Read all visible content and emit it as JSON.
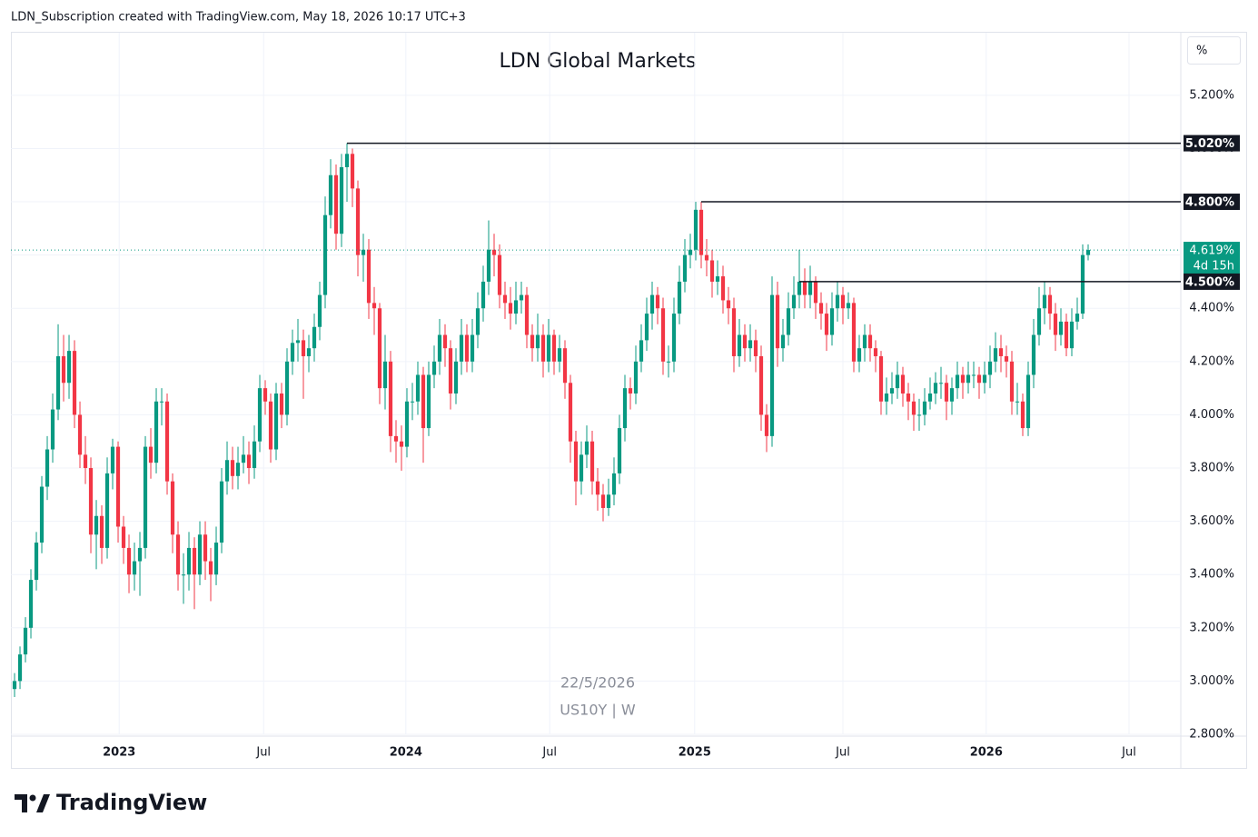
{
  "header": "LDN_Subscription created with TradingView.com, May 18, 2026 10:17 UTC+3",
  "logo": "TradingView",
  "chart_data": {
    "type": "candlestick",
    "title": "LDN Global Markets",
    "unit": "%",
    "watermark": [
      "22/5/2026",
      "US10Y | W"
    ],
    "up_color": "#089981",
    "down_color": "#f23645",
    "xlim": [
      -0.67,
      214
    ],
    "ylim": [
      2.8,
      5.435
    ],
    "xticks": [
      {
        "value": 19.2,
        "label": "2023"
      },
      {
        "value": 45.7,
        "label": "Jul"
      },
      {
        "value": 71.8,
        "label": "2024"
      },
      {
        "value": 98.2,
        "label": "Jul"
      },
      {
        "value": 124.8,
        "label": "2025"
      },
      {
        "value": 152,
        "label": "Jul"
      },
      {
        "value": 178.3,
        "label": "2026"
      },
      {
        "value": 204.5,
        "label": "Jul"
      }
    ],
    "yticks": [
      {
        "value": 2.8,
        "label": "2.800%"
      },
      {
        "value": 3.0,
        "label": "3.000%"
      },
      {
        "value": 3.2,
        "label": "3.200%"
      },
      {
        "value": 3.4,
        "label": "3.400%"
      },
      {
        "value": 3.6,
        "label": "3.600%"
      },
      {
        "value": 3.8,
        "label": "3.800%"
      },
      {
        "value": 4.0,
        "label": "4.000%"
      },
      {
        "value": 4.2,
        "label": "4.200%"
      },
      {
        "value": 4.4,
        "label": "4.400%"
      },
      {
        "value": 4.6,
        "label": "4.600%"
      },
      {
        "value": 4.8,
        "label": "4.800%"
      },
      {
        "value": 5.0,
        "label": "5.000%"
      },
      {
        "value": 5.2,
        "label": "5.200%"
      }
    ],
    "grid": true,
    "levels": [
      {
        "value": 5.02,
        "label": "5.020%",
        "x": 61
      },
      {
        "value": 4.8,
        "label": "4.800%",
        "x": 126
      },
      {
        "value": 4.5,
        "label": "4.500%",
        "x": 144
      }
    ],
    "last_price": {
      "value": 4.619,
      "label": "4.619%",
      "countdown": "4d 15h"
    },
    "ohlc": [
      [
        2.97,
        3.03,
        2.94,
        3.0
      ],
      [
        3.0,
        3.13,
        2.97,
        3.1
      ],
      [
        3.1,
        3.24,
        3.07,
        3.2
      ],
      [
        3.2,
        3.42,
        3.16,
        3.38
      ],
      [
        3.38,
        3.56,
        3.34,
        3.52
      ],
      [
        3.52,
        3.77,
        3.48,
        3.73
      ],
      [
        3.73,
        3.92,
        3.68,
        3.87
      ],
      [
        3.87,
        4.08,
        3.82,
        4.02
      ],
      [
        4.02,
        4.34,
        3.98,
        4.22
      ],
      [
        4.22,
        4.3,
        4.05,
        4.12
      ],
      [
        4.12,
        4.3,
        4.06,
        4.24
      ],
      [
        4.24,
        4.28,
        3.95,
        4.0
      ],
      [
        4.0,
        4.05,
        3.8,
        3.85
      ],
      [
        3.85,
        3.92,
        3.74,
        3.8
      ],
      [
        3.8,
        3.84,
        3.48,
        3.55
      ],
      [
        3.55,
        3.68,
        3.42,
        3.62
      ],
      [
        3.62,
        3.66,
        3.44,
        3.5
      ],
      [
        3.5,
        3.84,
        3.46,
        3.78
      ],
      [
        3.78,
        3.91,
        3.72,
        3.88
      ],
      [
        3.88,
        3.9,
        3.52,
        3.58
      ],
      [
        3.58,
        3.62,
        3.44,
        3.5
      ],
      [
        3.5,
        3.55,
        3.33,
        3.4
      ],
      [
        3.4,
        3.52,
        3.34,
        3.45
      ],
      [
        3.45,
        3.56,
        3.32,
        3.5
      ],
      [
        3.5,
        3.92,
        3.46,
        3.88
      ],
      [
        3.88,
        3.95,
        3.76,
        3.82
      ],
      [
        3.82,
        4.1,
        3.78,
        4.05
      ],
      [
        4.05,
        4.1,
        3.96,
        4.05
      ],
      [
        4.05,
        4.08,
        3.7,
        3.75
      ],
      [
        3.75,
        3.78,
        3.48,
        3.55
      ],
      [
        3.55,
        3.6,
        3.34,
        3.4
      ],
      [
        3.4,
        3.48,
        3.29,
        3.4
      ],
      [
        3.4,
        3.56,
        3.34,
        3.5
      ],
      [
        3.5,
        3.54,
        3.27,
        3.4
      ],
      [
        3.4,
        3.6,
        3.36,
        3.55
      ],
      [
        3.55,
        3.6,
        3.38,
        3.45
      ],
      [
        3.45,
        3.5,
        3.3,
        3.4
      ],
      [
        3.4,
        3.58,
        3.36,
        3.52
      ],
      [
        3.52,
        3.8,
        3.48,
        3.75
      ],
      [
        3.75,
        3.9,
        3.7,
        3.83
      ],
      [
        3.83,
        3.88,
        3.72,
        3.77
      ],
      [
        3.77,
        3.88,
        3.72,
        3.82
      ],
      [
        3.82,
        3.92,
        3.78,
        3.85
      ],
      [
        3.85,
        3.9,
        3.74,
        3.8
      ],
      [
        3.8,
        3.96,
        3.76,
        3.9
      ],
      [
        3.9,
        4.15,
        3.86,
        4.1
      ],
      [
        4.1,
        4.13,
        4.0,
        4.05
      ],
      [
        4.05,
        4.08,
        3.82,
        3.87
      ],
      [
        3.87,
        4.12,
        3.83,
        4.08
      ],
      [
        4.08,
        4.12,
        3.95,
        4.0
      ],
      [
        4.0,
        4.25,
        3.96,
        4.2
      ],
      [
        4.2,
        4.32,
        4.15,
        4.27
      ],
      [
        4.27,
        4.36,
        4.2,
        4.28
      ],
      [
        4.28,
        4.32,
        4.06,
        4.22
      ],
      [
        4.22,
        4.3,
        4.16,
        4.25
      ],
      [
        4.25,
        4.38,
        4.2,
        4.33
      ],
      [
        4.33,
        4.5,
        4.28,
        4.45
      ],
      [
        4.45,
        4.82,
        4.4,
        4.75
      ],
      [
        4.75,
        4.96,
        4.7,
        4.9
      ],
      [
        4.9,
        4.94,
        4.62,
        4.68
      ],
      [
        4.68,
        4.98,
        4.63,
        4.93
      ],
      [
        4.93,
        5.02,
        4.8,
        4.98
      ],
      [
        4.98,
        5.0,
        4.78,
        4.85
      ],
      [
        4.85,
        4.88,
        4.52,
        4.6
      ],
      [
        4.6,
        4.68,
        4.5,
        4.62
      ],
      [
        4.62,
        4.66,
        4.36,
        4.42
      ],
      [
        4.42,
        4.48,
        4.3,
        4.4
      ],
      [
        4.4,
        4.42,
        4.04,
        4.1
      ],
      [
        4.1,
        4.3,
        4.02,
        4.2
      ],
      [
        4.2,
        4.24,
        3.86,
        3.92
      ],
      [
        3.92,
        3.98,
        3.82,
        3.9
      ],
      [
        3.9,
        3.96,
        3.79,
        3.88
      ],
      [
        3.88,
        4.1,
        3.84,
        4.05
      ],
      [
        4.05,
        4.12,
        3.98,
        4.05
      ],
      [
        4.05,
        4.2,
        4.0,
        4.15
      ],
      [
        4.15,
        4.18,
        3.82,
        3.95
      ],
      [
        3.95,
        4.2,
        3.92,
        4.15
      ],
      [
        4.15,
        4.26,
        4.1,
        4.2
      ],
      [
        4.2,
        4.36,
        4.15,
        4.3
      ],
      [
        4.3,
        4.34,
        4.18,
        4.25
      ],
      [
        4.25,
        4.28,
        4.02,
        4.08
      ],
      [
        4.08,
        4.25,
        4.04,
        4.2
      ],
      [
        4.2,
        4.36,
        4.15,
        4.3
      ],
      [
        4.3,
        4.34,
        4.16,
        4.2
      ],
      [
        4.2,
        4.36,
        4.16,
        4.3
      ],
      [
        4.3,
        4.46,
        4.25,
        4.4
      ],
      [
        4.4,
        4.56,
        4.35,
        4.5
      ],
      [
        4.5,
        4.73,
        4.45,
        4.62
      ],
      [
        4.62,
        4.68,
        4.52,
        4.6
      ],
      [
        4.6,
        4.64,
        4.4,
        4.45
      ],
      [
        4.45,
        4.5,
        4.36,
        4.42
      ],
      [
        4.42,
        4.48,
        4.32,
        4.38
      ],
      [
        4.38,
        4.5,
        4.34,
        4.43
      ],
      [
        4.43,
        4.5,
        4.38,
        4.45
      ],
      [
        4.45,
        4.48,
        4.25,
        4.3
      ],
      [
        4.3,
        4.34,
        4.2,
        4.25
      ],
      [
        4.25,
        4.38,
        4.2,
        4.3
      ],
      [
        4.3,
        4.34,
        4.14,
        4.2
      ],
      [
        4.2,
        4.36,
        4.16,
        4.3
      ],
      [
        4.3,
        4.32,
        4.15,
        4.2
      ],
      [
        4.2,
        4.3,
        4.16,
        4.25
      ],
      [
        4.25,
        4.28,
        4.06,
        4.12
      ],
      [
        4.12,
        4.15,
        3.82,
        3.9
      ],
      [
        3.9,
        3.94,
        3.66,
        3.75
      ],
      [
        3.75,
        3.9,
        3.7,
        3.85
      ],
      [
        3.85,
        3.96,
        3.8,
        3.9
      ],
      [
        3.9,
        3.94,
        3.7,
        3.75
      ],
      [
        3.75,
        3.8,
        3.64,
        3.7
      ],
      [
        3.7,
        3.74,
        3.6,
        3.65
      ],
      [
        3.65,
        3.76,
        3.62,
        3.7
      ],
      [
        3.7,
        3.84,
        3.66,
        3.78
      ],
      [
        3.78,
        4.0,
        3.74,
        3.95
      ],
      [
        3.95,
        4.15,
        3.9,
        4.1
      ],
      [
        4.1,
        4.14,
        4.02,
        4.08
      ],
      [
        4.08,
        4.26,
        4.04,
        4.2
      ],
      [
        4.2,
        4.34,
        4.16,
        4.28
      ],
      [
        4.28,
        4.44,
        4.24,
        4.38
      ],
      [
        4.38,
        4.5,
        4.32,
        4.45
      ],
      [
        4.45,
        4.48,
        4.34,
        4.4
      ],
      [
        4.4,
        4.44,
        4.15,
        4.2
      ],
      [
        4.2,
        4.26,
        4.14,
        4.2
      ],
      [
        4.2,
        4.44,
        4.16,
        4.38
      ],
      [
        4.38,
        4.56,
        4.34,
        4.5
      ],
      [
        4.5,
        4.66,
        4.46,
        4.6
      ],
      [
        4.6,
        4.68,
        4.55,
        4.62
      ],
      [
        4.62,
        4.8,
        4.58,
        4.77
      ],
      [
        4.77,
        4.8,
        4.55,
        4.6
      ],
      [
        4.6,
        4.66,
        4.52,
        4.58
      ],
      [
        4.58,
        4.62,
        4.44,
        4.5
      ],
      [
        4.5,
        4.58,
        4.45,
        4.52
      ],
      [
        4.52,
        4.56,
        4.38,
        4.43
      ],
      [
        4.43,
        4.48,
        4.34,
        4.4
      ],
      [
        4.4,
        4.44,
        4.16,
        4.22
      ],
      [
        4.22,
        4.36,
        4.18,
        4.3
      ],
      [
        4.3,
        4.34,
        4.2,
        4.25
      ],
      [
        4.25,
        4.34,
        4.2,
        4.28
      ],
      [
        4.28,
        4.32,
        4.16,
        4.22
      ],
      [
        4.22,
        4.26,
        3.94,
        4.0
      ],
      [
        4.0,
        4.04,
        3.86,
        3.92
      ],
      [
        3.92,
        4.52,
        3.88,
        4.45
      ],
      [
        4.45,
        4.5,
        4.18,
        4.25
      ],
      [
        4.25,
        4.36,
        4.2,
        4.3
      ],
      [
        4.3,
        4.46,
        4.26,
        4.4
      ],
      [
        4.4,
        4.52,
        4.36,
        4.45
      ],
      [
        4.45,
        4.62,
        4.4,
        4.5
      ],
      [
        4.5,
        4.55,
        4.4,
        4.45
      ],
      [
        4.45,
        4.56,
        4.4,
        4.5
      ],
      [
        4.5,
        4.52,
        4.36,
        4.42
      ],
      [
        4.42,
        4.46,
        4.32,
        4.38
      ],
      [
        4.38,
        4.42,
        4.24,
        4.3
      ],
      [
        4.3,
        4.46,
        4.26,
        4.4
      ],
      [
        4.4,
        4.5,
        4.35,
        4.45
      ],
      [
        4.45,
        4.48,
        4.34,
        4.4
      ],
      [
        4.4,
        4.46,
        4.36,
        4.42
      ],
      [
        4.42,
        4.44,
        4.16,
        4.2
      ],
      [
        4.2,
        4.3,
        4.16,
        4.25
      ],
      [
        4.25,
        4.34,
        4.2,
        4.3
      ],
      [
        4.3,
        4.34,
        4.2,
        4.25
      ],
      [
        4.25,
        4.28,
        4.16,
        4.22
      ],
      [
        4.22,
        4.24,
        4.0,
        4.05
      ],
      [
        4.05,
        4.14,
        4.0,
        4.08
      ],
      [
        4.08,
        4.16,
        4.04,
        4.1
      ],
      [
        4.1,
        4.2,
        4.06,
        4.15
      ],
      [
        4.15,
        4.18,
        4.03,
        4.08
      ],
      [
        4.08,
        4.12,
        3.98,
        4.05
      ],
      [
        4.05,
        4.08,
        3.94,
        4.0
      ],
      [
        4.0,
        4.06,
        3.94,
        4.0
      ],
      [
        4.0,
        4.1,
        3.96,
        4.05
      ],
      [
        4.05,
        4.14,
        4.02,
        4.08
      ],
      [
        4.08,
        4.16,
        4.04,
        4.12
      ],
      [
        4.12,
        4.18,
        4.06,
        4.12
      ],
      [
        4.12,
        4.15,
        3.98,
        4.05
      ],
      [
        4.05,
        4.14,
        4.0,
        4.1
      ],
      [
        4.1,
        4.2,
        4.06,
        4.15
      ],
      [
        4.15,
        4.18,
        4.06,
        4.12
      ],
      [
        4.12,
        4.2,
        4.08,
        4.15
      ],
      [
        4.15,
        4.2,
        4.1,
        4.15
      ],
      [
        4.15,
        4.18,
        4.06,
        4.12
      ],
      [
        4.12,
        4.2,
        4.08,
        4.15
      ],
      [
        4.15,
        4.26,
        4.1,
        4.2
      ],
      [
        4.2,
        4.31,
        4.16,
        4.25
      ],
      [
        4.25,
        4.3,
        4.16,
        4.22
      ],
      [
        4.22,
        4.26,
        4.14,
        4.2
      ],
      [
        4.2,
        4.24,
        4.0,
        4.05
      ],
      [
        4.05,
        4.12,
        4.0,
        4.05
      ],
      [
        4.05,
        4.08,
        3.92,
        3.95
      ],
      [
        3.95,
        4.2,
        3.92,
        4.15
      ],
      [
        4.15,
        4.36,
        4.1,
        4.3
      ],
      [
        4.3,
        4.48,
        4.26,
        4.4
      ],
      [
        4.4,
        4.5,
        4.34,
        4.45
      ],
      [
        4.45,
        4.48,
        4.32,
        4.38
      ],
      [
        4.38,
        4.42,
        4.24,
        4.3
      ],
      [
        4.3,
        4.4,
        4.26,
        4.35
      ],
      [
        4.35,
        4.38,
        4.22,
        4.25
      ],
      [
        4.25,
        4.4,
        4.22,
        4.35
      ],
      [
        4.35,
        4.44,
        4.32,
        4.38
      ],
      [
        4.38,
        4.64,
        4.36,
        4.6
      ],
      [
        4.6,
        4.64,
        4.58,
        4.619
      ]
    ]
  }
}
